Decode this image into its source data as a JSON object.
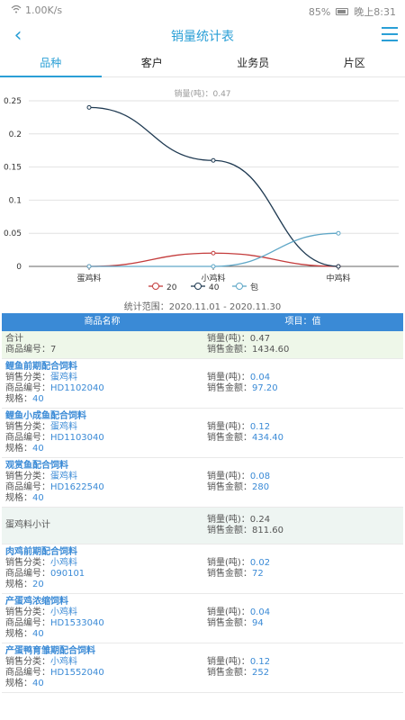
{
  "statusbar": {
    "speed": "1.00K/s",
    "battery": "85%",
    "time": "晚上8:31"
  },
  "header": {
    "title": "销量统计表"
  },
  "tabs": [
    "品种",
    "客户",
    "业务员",
    "片区"
  ],
  "chart_data": {
    "type": "line",
    "tooltip": "销量(吨)：0.47",
    "categories": [
      "蛋鸡料",
      "小鸡料",
      "中鸡料"
    ],
    "ylim": [
      0,
      0.25
    ],
    "yticks": [
      "0",
      "0.05",
      "0.1",
      "0.15",
      "0.2",
      "0.25"
    ],
    "series": [
      {
        "name": "20",
        "color": "#c43c3c",
        "values": [
          0,
          0.02,
          0
        ]
      },
      {
        "name": "40",
        "color": "#1f3a52",
        "values": [
          0.24,
          0.16,
          0
        ]
      },
      {
        "name": "包",
        "color": "#5fa7c7",
        "values": [
          0,
          0,
          0.05
        ]
      }
    ]
  },
  "range": "统计范围：2020.11.01 - 2020.11.30",
  "table": {
    "headers": [
      "商品名称",
      "项目：值"
    ],
    "summary": {
      "left1": "合计",
      "left2": "商品编号：7",
      "right1": "销量(吨)：0.47",
      "right2": "销售金额：1434.60"
    },
    "labels": {
      "category": "销售分类：",
      "code": "商品编号：",
      "spec": "规格：",
      "qty": "销量(吨)：",
      "amount": "销售金额："
    },
    "items": [
      {
        "name": "鲤鱼前期配合饲料",
        "category": "蛋鸡料",
        "code": "HD1102040",
        "spec": "40",
        "qty": "0.04",
        "amount": "97.20"
      },
      {
        "name": "鲤鱼小成鱼配合饲料",
        "category": "蛋鸡料",
        "code": "HD1103040",
        "spec": "40",
        "qty": "0.12",
        "amount": "434.40"
      },
      {
        "name": "观赏鱼配合饲料",
        "category": "蛋鸡料",
        "code": "HD1622540",
        "spec": "40",
        "qty": "0.08",
        "amount": "280"
      }
    ],
    "subtotal": {
      "label": "蛋鸡料小计",
      "qty": "销量(吨)：0.24",
      "amount": "销售金额：811.60"
    },
    "items2": [
      {
        "name": "肉鸡前期配合饲料",
        "category": "小鸡料",
        "code": "090101",
        "spec": "20",
        "qty": "0.02",
        "amount": "72"
      },
      {
        "name": "产蛋鸡浓缩饲料",
        "category": "小鸡料",
        "code": "HD1533040",
        "spec": "40",
        "qty": "0.04",
        "amount": "94"
      },
      {
        "name": "产蛋鸭育雏期配合饲料",
        "category": "小鸡料",
        "code": "HD1552040",
        "spec": "40",
        "qty": "0.12",
        "amount": "252"
      }
    ]
  }
}
